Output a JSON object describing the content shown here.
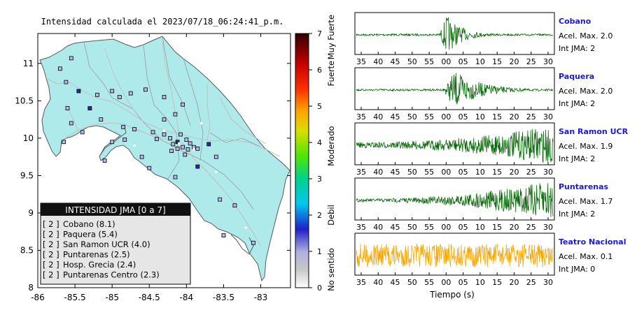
{
  "title": "Intensidad calculada el 2023/07/18_06:24:41_p.m.",
  "colors": {
    "land": "#aeeaea",
    "waveform": "#0a6b0a",
    "waveform_low": "#f5a800",
    "station_name": "#1a1ad4",
    "legend_bg": "#e6e6e6",
    "legend_header_bg": "#111111",
    "station_marker_int2": "#b8b8e8"
  },
  "map": {
    "xlim": [
      -86,
      -82.6
    ],
    "ylim": [
      8,
      11.4
    ],
    "xticks": [
      -86,
      -85.5,
      -85,
      -84.5,
      -84,
      -83.5,
      -83
    ],
    "yticks": [
      8,
      8.5,
      9,
      9.5,
      10,
      10.5,
      11
    ],
    "stations_shown": [
      [
        -85.55,
        11.07
      ],
      [
        -85.7,
        10.93
      ],
      [
        -85.62,
        10.75
      ],
      [
        -85.45,
        10.63
      ],
      [
        -85.2,
        10.58
      ],
      [
        -85.0,
        10.63
      ],
      [
        -84.9,
        10.55
      ],
      [
        -84.75,
        10.6
      ],
      [
        -84.55,
        10.65
      ],
      [
        -84.3,
        10.55
      ],
      [
        -84.05,
        10.45
      ],
      [
        -84.15,
        10.32
      ],
      [
        -85.6,
        10.4
      ],
      [
        -85.55,
        10.2
      ],
      [
        -85.3,
        10.4
      ],
      [
        -85.15,
        10.25
      ],
      [
        -85.4,
        10.08
      ],
      [
        -85.65,
        9.95
      ],
      [
        -84.85,
        10.15
      ],
      [
        -84.7,
        10.12
      ],
      [
        -84.45,
        10.08
      ],
      [
        -84.4,
        9.99
      ],
      [
        -84.3,
        10.05
      ],
      [
        -84.22,
        10.0
      ],
      [
        -84.18,
        9.92
      ],
      [
        -84.12,
        9.95
      ],
      [
        -84.08,
        10.05
      ],
      [
        -84.0,
        9.98
      ],
      [
        -83.95,
        9.93
      ],
      [
        -83.98,
        9.85
      ],
      [
        -84.05,
        9.88
      ],
      [
        -84.12,
        9.86
      ],
      [
        -84.2,
        9.83
      ],
      [
        -83.9,
        9.88
      ],
      [
        -83.85,
        9.86
      ],
      [
        -84.02,
        9.78
      ],
      [
        -83.7,
        9.92
      ],
      [
        -84.3,
        10.25
      ],
      [
        -84.5,
        9.6
      ],
      [
        -84.6,
        9.75
      ],
      [
        -85.0,
        9.95
      ],
      [
        -84.83,
        9.98
      ],
      [
        -83.55,
        9.18
      ],
      [
        -83.35,
        9.1
      ],
      [
        -83.1,
        8.6
      ],
      [
        -83.5,
        8.7
      ],
      [
        -85.1,
        9.7
      ],
      [
        -83.85,
        9.62
      ],
      [
        -84.15,
        9.48
      ],
      [
        -83.6,
        9.75
      ]
    ],
    "legend_title": "INTENSIDAD JMA [0 a 7]",
    "legend_rows": [
      {
        "int": "[ 2 ]",
        "station": "Cobano (8.1)"
      },
      {
        "int": "[ 2 ]",
        "station": "Paquera (5.4)"
      },
      {
        "int": "[ 2 ]",
        "station": "San Ramon UCR (4.0)"
      },
      {
        "int": "[ 2 ]",
        "station": "Puntarenas (2.5)"
      },
      {
        "int": "[ 2 ]",
        "station": "Hosp. Grecia (2.4)"
      },
      {
        "int": "[ 2 ]",
        "station": "Puntarenas Centro (2.3)"
      }
    ]
  },
  "colorbar": {
    "range": [
      0,
      7
    ],
    "ticks": [
      "0",
      "1",
      "2",
      "3",
      "4",
      "5",
      "6",
      "7"
    ],
    "labels": [
      "No sentido",
      "Debil",
      "Moderado",
      "Fuerte",
      "Muy Fuerte"
    ]
  },
  "waveforms": {
    "x_ticks": [
      "35",
      "40",
      "45",
      "50",
      "55",
      "00",
      "05",
      "10",
      "15",
      "20",
      "25",
      "30"
    ],
    "xlabel": "Tiempo (s)",
    "accel_prefix": "Acel. Max.",
    "int_prefix": "Int JMA:",
    "traces": [
      {
        "station": "Cobano",
        "accel": "2.0",
        "int": "2",
        "onset": 0.42,
        "peak": 0.46,
        "decay": 0.08,
        "amp": 1.0,
        "pre": 0.05,
        "growth": 0,
        "color": "#0a6b0a"
      },
      {
        "station": "Paquera",
        "accel": "2.0",
        "int": "2",
        "onset": 0.44,
        "peak": 0.5,
        "decay": 0.14,
        "amp": 0.95,
        "pre": 0.05,
        "growth": 0,
        "color": "#0a6b0a"
      },
      {
        "station": "San Ramon UCR",
        "accel": "1.9",
        "int": "2",
        "onset": 0.0,
        "peak": 0.97,
        "decay": 0.0,
        "amp": 1.0,
        "pre": 0.15,
        "growth": 1,
        "color": "#0a6b0a"
      },
      {
        "station": "Puntarenas",
        "accel": "1.7",
        "int": "2",
        "onset": 0.0,
        "peak": 0.92,
        "decay": 0.0,
        "amp": 1.0,
        "pre": 0.08,
        "growth": 1,
        "color": "#0a6b0a"
      },
      {
        "station": "Teatro Nacional",
        "accel": "0.1",
        "int": "0",
        "onset": 0.0,
        "peak": 0.5,
        "decay": 0.0,
        "amp": 0.6,
        "pre": 0.6,
        "growth": 0,
        "color": "#f5a800"
      }
    ]
  }
}
